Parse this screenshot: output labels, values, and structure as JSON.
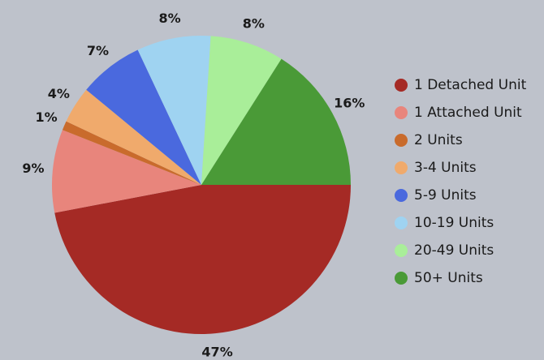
{
  "chart_data": {
    "type": "pie",
    "categories": [
      "1 Detached Unit",
      "1 Attached Unit",
      "2 Units",
      "3-4 Units",
      "5-9 Units",
      "10-19 Units",
      "20-49 Units",
      "50+ Units"
    ],
    "values": [
      47,
      9,
      1,
      4,
      7,
      8,
      8,
      16
    ],
    "value_labels": [
      "47%",
      "9%",
      "1%",
      "4%",
      "7%",
      "8%",
      "8%",
      "16%"
    ],
    "colors": [
      "#a52a25",
      "#e8857c",
      "#c96b2c",
      "#f0aa6c",
      "#4a69de",
      "#9fd3f1",
      "#a9ee99",
      "#4a9a37"
    ],
    "legend": "right"
  }
}
